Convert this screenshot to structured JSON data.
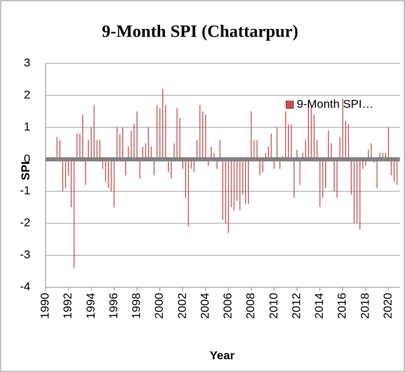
{
  "chart_data": {
    "type": "bar",
    "title": "9-Month SPI (Chattarpur)",
    "x_label": "Year",
    "y_label": "SPI",
    "x": [
      1991,
      1991.25,
      1991.5,
      1991.75,
      1992,
      1992.25,
      1992.5,
      1992.75,
      1993,
      1993.25,
      1993.5,
      1993.75,
      1994,
      1994.25,
      1994.5,
      1994.75,
      1995,
      1995.25,
      1995.5,
      1995.75,
      1996,
      1996.25,
      1996.5,
      1996.75,
      1997,
      1997.25,
      1997.5,
      1997.75,
      1998,
      1998.25,
      1998.5,
      1998.75,
      1999,
      1999.25,
      1999.5,
      1999.75,
      2000,
      2000.25,
      2000.5,
      2000.75,
      2001,
      2001.25,
      2001.5,
      2001.75,
      2002,
      2002.25,
      2002.5,
      2002.75,
      2003,
      2003.25,
      2003.5,
      2003.75,
      2004,
      2004.25,
      2004.5,
      2004.75,
      2005,
      2005.25,
      2005.5,
      2005.75,
      2006,
      2006.25,
      2006.5,
      2006.75,
      2007,
      2007.25,
      2007.5,
      2007.75,
      2008,
      2008.25,
      2008.5,
      2008.75,
      2009,
      2009.25,
      2009.5,
      2009.75,
      2010,
      2010.25,
      2010.5,
      2010.75,
      2011,
      2011.25,
      2011.5,
      2011.75,
      2012,
      2012.25,
      2012.5,
      2012.75,
      2013,
      2013.25,
      2013.5,
      2013.75,
      2014,
      2014.25,
      2014.5,
      2014.75,
      2015,
      2015.25,
      2015.5,
      2015.75,
      2016,
      2016.25,
      2016.5,
      2016.75,
      2017,
      2017.25,
      2017.5,
      2017.75,
      2018,
      2018.25,
      2018.5,
      2018.75,
      2019,
      2019.25,
      2019.5,
      2019.75,
      2020,
      2020.25,
      2020.5,
      2020.75
    ],
    "series": [
      {
        "name": "9-Month SPI…",
        "color": "#c0504d",
        "values": [
          0.7,
          0.6,
          -1.0,
          -0.9,
          -0.5,
          -1.5,
          -3.4,
          0.8,
          0.8,
          1.4,
          -0.8,
          0.6,
          1.0,
          1.7,
          0.6,
          0.6,
          -0.3,
          -0.7,
          -0.9,
          -1.0,
          -1.5,
          1.0,
          0.8,
          1.0,
          -0.5,
          0.4,
          0.9,
          1.1,
          1.5,
          -0.6,
          0.4,
          0.5,
          1.0,
          0.4,
          -0.5,
          1.7,
          1.6,
          2.2,
          1.7,
          -0.4,
          -0.6,
          0.5,
          1.6,
          1.3,
          -0.3,
          -1.2,
          -2.1,
          -0.3,
          -0.4,
          0.6,
          1.7,
          1.5,
          1.4,
          -0.2,
          0.4,
          0.2,
          -0.3,
          0.6,
          -1.9,
          -2.0,
          -2.3,
          -1.5,
          -1.6,
          -1.3,
          -1.6,
          -1.1,
          -1.4,
          -1.4,
          1.5,
          0.6,
          0.6,
          -0.5,
          -0.4,
          0.2,
          0.4,
          0.8,
          -0.3,
          1.0,
          -0.3,
          0.1,
          1.5,
          1.1,
          1.1,
          -1.2,
          0.3,
          -0.8,
          0.2,
          0.6,
          1.8,
          1.7,
          1.4,
          0.6,
          -1.5,
          -1.2,
          -0.9,
          0.9,
          0.5,
          -1.0,
          -1.2,
          0.7,
          1.9,
          1.2,
          1.1,
          -1.1,
          -2.0,
          -2.0,
          -2.2,
          -0.3,
          -0.2,
          0.3,
          0.5,
          -0.1,
          -0.9,
          0.2,
          0.2,
          0.2,
          1.0,
          -0.5,
          -0.7,
          -0.8
        ]
      }
    ],
    "xlim": [
      1990,
      2021
    ],
    "xticks": [
      1990,
      1992,
      1994,
      1996,
      1998,
      2000,
      2002,
      2004,
      2006,
      2008,
      2010,
      2012,
      2014,
      2016,
      2018,
      2020
    ],
    "ylim": [
      -4,
      3
    ],
    "yticks": [
      -4,
      -3,
      -2,
      -1,
      0,
      1,
      2,
      3
    ],
    "grid": true,
    "legend": "top-right"
  }
}
